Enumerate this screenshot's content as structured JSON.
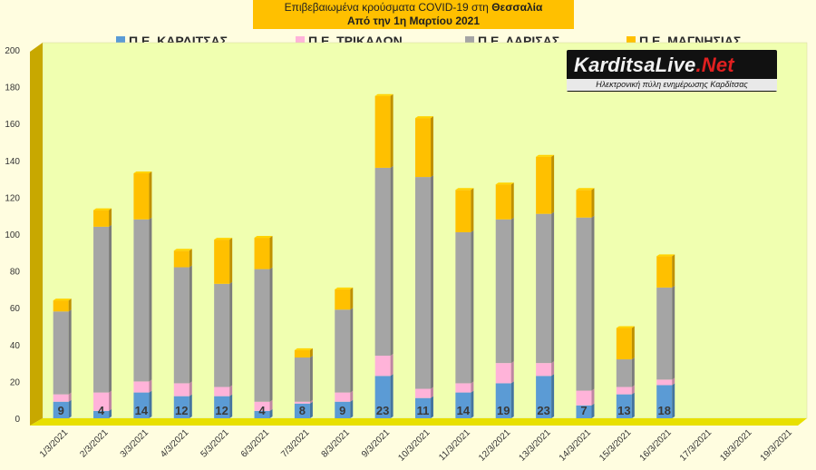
{
  "header": {
    "title_prefix": "Επιβεβαιωμένα κρούσματα COVID-19 στη ",
    "title_region": "Θεσσαλία",
    "subtitle": "Από την 1η Μαρτίου 2021"
  },
  "logo": {
    "name_part1": "KarditsaLive",
    "name_part2": ".Net",
    "tagline": "Ηλεκτρονική πύλη ενημέρωσης Καρδίτσας"
  },
  "colors": {
    "karditsa": "#5b9bd5",
    "trikala": "#ffb3d9",
    "larisa": "#a5a5a5",
    "magnisia": "#ffc000",
    "plot_bg": "#f0ffb0",
    "floor": "#e8e000",
    "wall": "#c8a800"
  },
  "chart_data": {
    "type": "bar",
    "stacked": true,
    "title": "Επιβεβαιωμένα κρούσματα COVID-19 στη Θεσσαλία",
    "subtitle": "Από την 1η Μαρτίου 2021",
    "categories": [
      "1/3/2021",
      "2/3/2021",
      "3/3/2021",
      "4/3/2021",
      "5/3/2021",
      "6/3/2021",
      "7/3/2021",
      "8/3/2021",
      "9/3/2021",
      "10/3/2021",
      "11/3/2021",
      "12/3/2021",
      "13/3/2021",
      "14/3/2021",
      "15/3/2021",
      "16/3/2021",
      "17/3/2021",
      "18/3/2021",
      "19/3/2021"
    ],
    "ylim": [
      0,
      200
    ],
    "yticks": [
      0,
      20,
      40,
      60,
      80,
      100,
      120,
      140,
      160,
      180,
      200
    ],
    "legend_position": "top",
    "grid": false,
    "series": [
      {
        "name": "Π.Ε. ΚΑΡΔΙΤΣΑΣ",
        "key": "karditsa",
        "values": [
          9,
          4,
          14,
          12,
          12,
          4,
          8,
          9,
          23,
          11,
          14,
          19,
          23,
          7,
          13,
          18,
          null,
          null,
          null
        ]
      },
      {
        "name": "Π.Ε. ΤΡΙΚΑΛΩΝ",
        "key": "trikala",
        "values": [
          4,
          10,
          6,
          7,
          5,
          5,
          1,
          5,
          11,
          5,
          5,
          11,
          7,
          8,
          4,
          3,
          null,
          null,
          null
        ]
      },
      {
        "name": "Π.Ε. ΛΑΡΙΣΑΣ",
        "key": "larisa",
        "values": [
          45,
          90,
          88,
          63,
          56,
          72,
          24,
          45,
          102,
          115,
          82,
          78,
          81,
          94,
          15,
          50,
          null,
          null,
          null
        ]
      },
      {
        "name": "Π.Ε. ΜΑΓΝΗΣΙΑΣ",
        "key": "magnisia",
        "values": [
          6,
          9,
          25,
          9,
          24,
          17,
          4,
          11,
          39,
          32,
          23,
          19,
          31,
          15,
          17,
          17,
          null,
          null,
          null
        ]
      }
    ],
    "data_labels": [
      9,
      4,
      14,
      12,
      12,
      4,
      8,
      9,
      23,
      11,
      14,
      19,
      23,
      7,
      13,
      18,
      null,
      null,
      null
    ]
  }
}
